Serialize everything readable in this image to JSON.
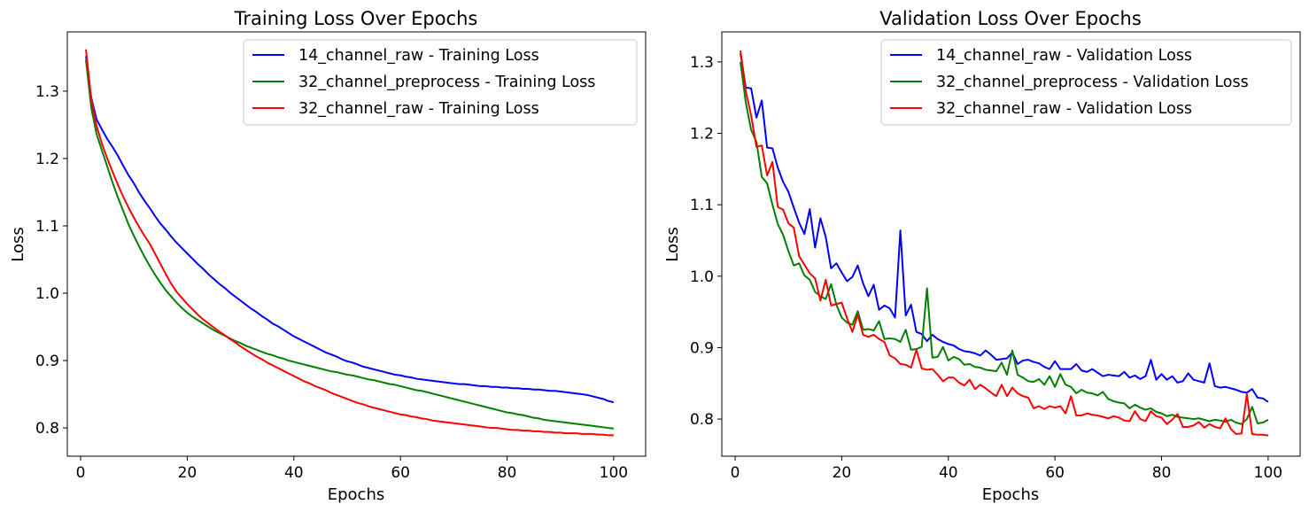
{
  "chart_data": [
    {
      "type": "line",
      "title": "Training Loss Over Epochs",
      "xlabel": "Epochs",
      "ylabel": "Loss",
      "xlim": [
        -2.5,
        106
      ],
      "ylim": [
        0.758,
        1.388
      ],
      "xticks": [
        0,
        20,
        40,
        60,
        80,
        100
      ],
      "xtick_labels": [
        "0",
        "20",
        "40",
        "60",
        "80",
        "100"
      ],
      "yticks": [
        0.8,
        0.9,
        1.0,
        1.1,
        1.2,
        1.3
      ],
      "ytick_labels": [
        "0.8",
        "0.9",
        "1.0",
        "1.1",
        "1.2",
        "1.3"
      ],
      "grid": false,
      "legend_position": "top-right",
      "x_start": 1,
      "series": [
        {
          "name": "14_channel_raw - Training Loss",
          "color": "#0000ff",
          "values": [
            1.352,
            1.29,
            1.258,
            1.243,
            1.229,
            1.217,
            1.204,
            1.189,
            1.175,
            1.163,
            1.149,
            1.137,
            1.126,
            1.114,
            1.103,
            1.094,
            1.084,
            1.075,
            1.067,
            1.059,
            1.051,
            1.043,
            1.036,
            1.028,
            1.021,
            1.014,
            1.008,
            1.001,
            0.995,
            0.989,
            0.983,
            0.977,
            0.972,
            0.966,
            0.961,
            0.955,
            0.951,
            0.946,
            0.941,
            0.936,
            0.932,
            0.928,
            0.924,
            0.92,
            0.916,
            0.912,
            0.909,
            0.906,
            0.902,
            0.899,
            0.897,
            0.894,
            0.891,
            0.889,
            0.887,
            0.885,
            0.883,
            0.881,
            0.879,
            0.878,
            0.876,
            0.875,
            0.873,
            0.872,
            0.871,
            0.87,
            0.869,
            0.868,
            0.867,
            0.866,
            0.865,
            0.865,
            0.864,
            0.863,
            0.862,
            0.862,
            0.861,
            0.861,
            0.86,
            0.86,
            0.859,
            0.859,
            0.858,
            0.858,
            0.857,
            0.857,
            0.856,
            0.855,
            0.855,
            0.854,
            0.853,
            0.852,
            0.851,
            0.85,
            0.849,
            0.847,
            0.845,
            0.843,
            0.84,
            0.838
          ]
        },
        {
          "name": "32_channel_preprocess - Training Loss",
          "color": "#008000",
          "values": [
            1.346,
            1.275,
            1.236,
            1.212,
            1.188,
            1.164,
            1.142,
            1.122,
            1.102,
            1.085,
            1.069,
            1.054,
            1.04,
            1.027,
            1.015,
            1.004,
            0.995,
            0.986,
            0.978,
            0.971,
            0.965,
            0.96,
            0.955,
            0.95,
            0.945,
            0.941,
            0.937,
            0.933,
            0.929,
            0.926,
            0.922,
            0.919,
            0.916,
            0.913,
            0.91,
            0.908,
            0.905,
            0.903,
            0.9,
            0.898,
            0.896,
            0.894,
            0.892,
            0.89,
            0.888,
            0.886,
            0.884,
            0.883,
            0.881,
            0.879,
            0.878,
            0.876,
            0.874,
            0.872,
            0.871,
            0.869,
            0.867,
            0.865,
            0.864,
            0.862,
            0.86,
            0.858,
            0.856,
            0.855,
            0.853,
            0.851,
            0.849,
            0.847,
            0.845,
            0.843,
            0.841,
            0.839,
            0.837,
            0.835,
            0.833,
            0.831,
            0.829,
            0.827,
            0.825,
            0.823,
            0.822,
            0.82,
            0.819,
            0.817,
            0.815,
            0.814,
            0.812,
            0.811,
            0.81,
            0.809,
            0.808,
            0.807,
            0.806,
            0.805,
            0.804,
            0.803,
            0.802,
            0.801,
            0.8,
            0.799
          ]
        },
        {
          "name": "32_channel_raw - Training Loss",
          "color": "#ff0000",
          "values": [
            1.362,
            1.287,
            1.248,
            1.222,
            1.2,
            1.18,
            1.161,
            1.143,
            1.127,
            1.112,
            1.098,
            1.085,
            1.073,
            1.058,
            1.043,
            1.028,
            1.014,
            1.002,
            0.993,
            0.984,
            0.976,
            0.968,
            0.961,
            0.955,
            0.949,
            0.943,
            0.938,
            0.932,
            0.927,
            0.921,
            0.916,
            0.911,
            0.906,
            0.902,
            0.897,
            0.893,
            0.889,
            0.885,
            0.881,
            0.877,
            0.873,
            0.869,
            0.866,
            0.862,
            0.859,
            0.856,
            0.852,
            0.849,
            0.846,
            0.843,
            0.84,
            0.837,
            0.835,
            0.832,
            0.83,
            0.828,
            0.826,
            0.824,
            0.822,
            0.82,
            0.819,
            0.817,
            0.816,
            0.814,
            0.813,
            0.811,
            0.81,
            0.809,
            0.808,
            0.807,
            0.806,
            0.805,
            0.804,
            0.803,
            0.802,
            0.801,
            0.8,
            0.8,
            0.799,
            0.798,
            0.797,
            0.797,
            0.796,
            0.796,
            0.795,
            0.795,
            0.794,
            0.794,
            0.793,
            0.793,
            0.792,
            0.792,
            0.792,
            0.791,
            0.791,
            0.791,
            0.79,
            0.79,
            0.789,
            0.789
          ]
        }
      ]
    },
    {
      "type": "line",
      "title": "Validation Loss Over Epochs",
      "xlabel": "Epochs",
      "ylabel": "Loss",
      "xlim": [
        -2.5,
        106
      ],
      "ylim": [
        0.748,
        1.342
      ],
      "xticks": [
        0,
        20,
        40,
        60,
        80,
        100
      ],
      "xtick_labels": [
        "0",
        "20",
        "40",
        "60",
        "80",
        "100"
      ],
      "yticks": [
        0.8,
        0.9,
        1.0,
        1.1,
        1.2,
        1.3
      ],
      "ytick_labels": [
        "0.8",
        "0.9",
        "1.0",
        "1.1",
        "1.2",
        "1.3"
      ],
      "grid": false,
      "legend_position": "top-right",
      "x_start": 1,
      "series": [
        {
          "name": "14_channel_raw - Validation Loss",
          "color": "#0000ff",
          "values": [
            1.312,
            1.264,
            1.263,
            1.222,
            1.246,
            1.18,
            1.179,
            1.152,
            1.132,
            1.118,
            1.096,
            1.075,
            1.059,
            1.094,
            1.04,
            1.081,
            1.055,
            1.011,
            1.018,
            1.005,
            0.993,
            0.999,
            1.015,
            0.99,
            0.972,
            0.988,
            0.953,
            0.959,
            0.955,
            0.942,
            1.064,
            0.945,
            0.96,
            0.922,
            0.919,
            0.909,
            0.918,
            0.912,
            0.908,
            0.905,
            0.903,
            0.898,
            0.895,
            0.894,
            0.892,
            0.889,
            0.896,
            0.89,
            0.883,
            0.884,
            0.885,
            0.893,
            0.877,
            0.882,
            0.883,
            0.88,
            0.878,
            0.873,
            0.87,
            0.881,
            0.87,
            0.87,
            0.87,
            0.877,
            0.868,
            0.866,
            0.87,
            0.865,
            0.86,
            0.862,
            0.861,
            0.86,
            0.866,
            0.858,
            0.861,
            0.856,
            0.86,
            0.883,
            0.855,
            0.863,
            0.855,
            0.86,
            0.851,
            0.853,
            0.864,
            0.855,
            0.853,
            0.851,
            0.878,
            0.846,
            0.844,
            0.845,
            0.843,
            0.841,
            0.838,
            0.837,
            0.842,
            0.83,
            0.829,
            0.824
          ]
        },
        {
          "name": "32_channel_preprocess - Validation Loss",
          "color": "#008000",
          "values": [
            1.3,
            1.243,
            1.205,
            1.188,
            1.139,
            1.13,
            1.1,
            1.073,
            1.058,
            1.035,
            1.015,
            1.018,
            1.001,
            0.995,
            0.978,
            0.972,
            0.968,
            0.989,
            0.96,
            0.942,
            0.935,
            0.932,
            0.951,
            0.925,
            0.926,
            0.924,
            0.937,
            0.912,
            0.913,
            0.912,
            0.908,
            0.925,
            0.897,
            0.898,
            0.901,
            0.983,
            0.886,
            0.887,
            0.901,
            0.882,
            0.887,
            0.884,
            0.876,
            0.877,
            0.873,
            0.872,
            0.869,
            0.868,
            0.867,
            0.879,
            0.862,
            0.896,
            0.862,
            0.858,
            0.853,
            0.852,
            0.856,
            0.848,
            0.86,
            0.845,
            0.863,
            0.848,
            0.845,
            0.836,
            0.841,
            0.837,
            0.836,
            0.833,
            0.838,
            0.828,
            0.825,
            0.823,
            0.822,
            0.815,
            0.82,
            0.816,
            0.813,
            0.815,
            0.81,
            0.808,
            0.804,
            0.806,
            0.803,
            0.802,
            0.801,
            0.8,
            0.801,
            0.799,
            0.797,
            0.799,
            0.798,
            0.796,
            0.799,
            0.795,
            0.793,
            0.8,
            0.817,
            0.794,
            0.795,
            0.799
          ]
        },
        {
          "name": "32_channel_raw - Validation Loss",
          "color": "#ff0000",
          "values": [
            1.316,
            1.259,
            1.225,
            1.181,
            1.183,
            1.141,
            1.16,
            1.097,
            1.093,
            1.074,
            1.068,
            1.028,
            1.016,
            1.004,
            0.997,
            0.966,
            0.995,
            0.959,
            0.961,
            0.963,
            0.941,
            0.922,
            0.946,
            0.918,
            0.915,
            0.918,
            0.912,
            0.908,
            0.889,
            0.885,
            0.877,
            0.876,
            0.872,
            0.897,
            0.871,
            0.869,
            0.87,
            0.862,
            0.853,
            0.858,
            0.858,
            0.851,
            0.847,
            0.855,
            0.842,
            0.848,
            0.843,
            0.837,
            0.832,
            0.848,
            0.832,
            0.844,
            0.836,
            0.832,
            0.83,
            0.815,
            0.818,
            0.814,
            0.818,
            0.816,
            0.818,
            0.808,
            0.832,
            0.805,
            0.805,
            0.808,
            0.806,
            0.805,
            0.803,
            0.801,
            0.804,
            0.802,
            0.798,
            0.797,
            0.811,
            0.8,
            0.797,
            0.811,
            0.804,
            0.802,
            0.793,
            0.799,
            0.807,
            0.789,
            0.789,
            0.791,
            0.796,
            0.788,
            0.793,
            0.789,
            0.787,
            0.801,
            0.786,
            0.779,
            0.78,
            0.835,
            0.779,
            0.778,
            0.778,
            0.777
          ]
        }
      ]
    }
  ]
}
